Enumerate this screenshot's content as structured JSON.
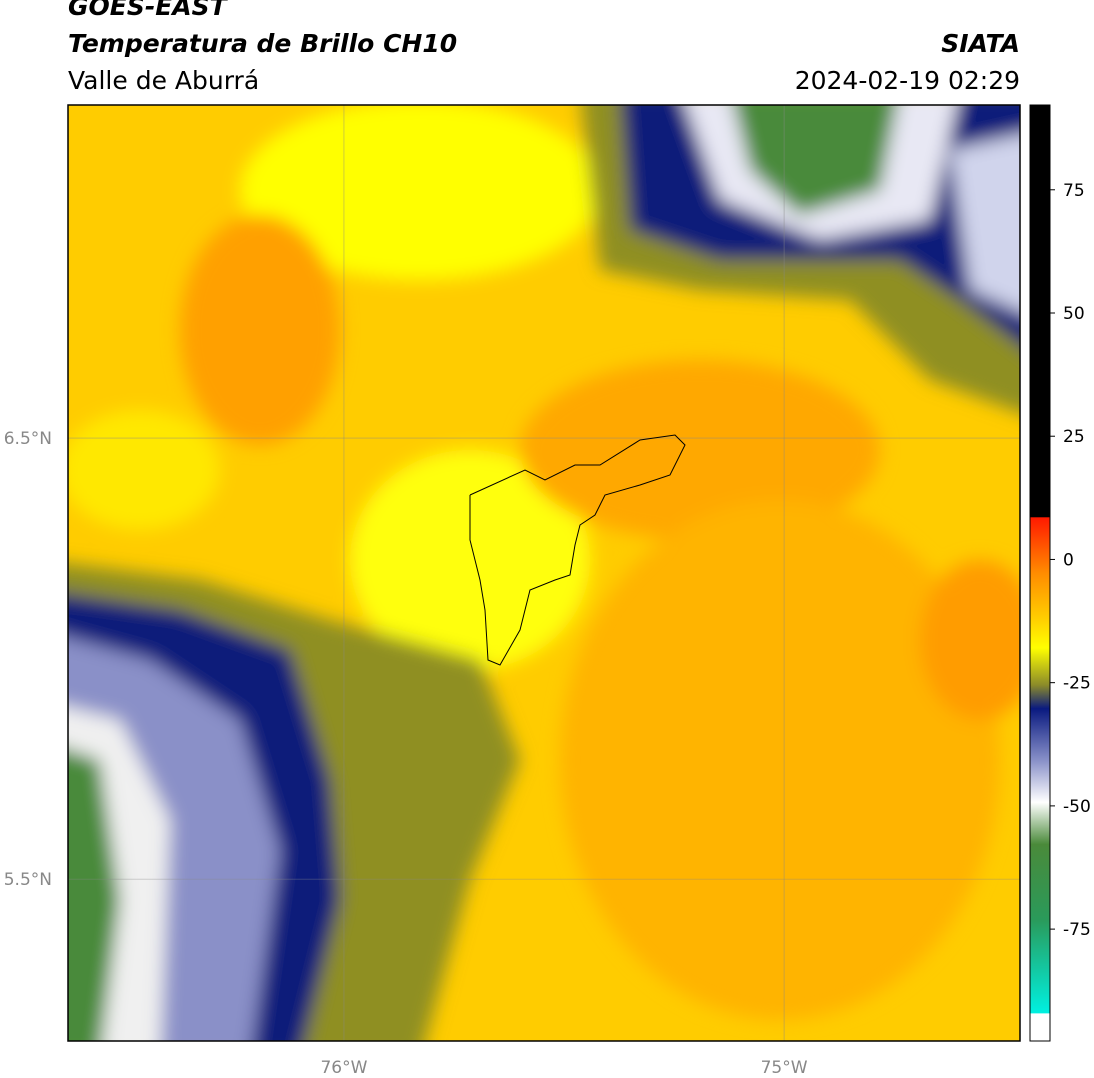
{
  "header": {
    "satellite": "GOES-EAST",
    "product": "Temperatura de Brillo CH10",
    "institution": "SIATA",
    "region": "Valle de Aburrá",
    "datetime": "2024-02-19 02:29"
  },
  "map": {
    "lon_range": [
      -76.627,
      -74.464
    ],
    "lat_range": [
      5.133,
      7.255
    ],
    "lon_ticks": [
      {
        "value": -76,
        "label": "76°W"
      },
      {
        "value": -75,
        "label": "75°W"
      }
    ],
    "lat_ticks": [
      {
        "value": 6.5,
        "label": "6.5°N"
      },
      {
        "value": 5.5,
        "label": "5.5°N"
      }
    ]
  },
  "colorbar": {
    "range": [
      -97.7,
      92.2
    ],
    "ticks": [
      75,
      50,
      25,
      0,
      -25,
      -50,
      -75
    ]
  }
}
